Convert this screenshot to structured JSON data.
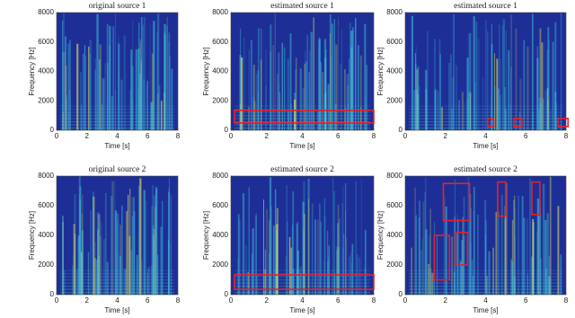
{
  "chart_data": [
    {
      "type": "spectrogram",
      "title": "original source 1",
      "xlabel": "Time [s]",
      "ylabel": "Frequency [Hz]",
      "xlim": [
        0,
        8
      ],
      "ylim": [
        0,
        8000
      ],
      "xticks": [
        0,
        2,
        4,
        6,
        8
      ],
      "yticks": [
        0,
        2000,
        4000,
        6000,
        8000
      ],
      "highlight_color": "#e8202a",
      "highlights": []
    },
    {
      "type": "spectrogram",
      "title": "estimated source 1",
      "xlabel": "Time [s]",
      "ylabel": "Frequency [Hz]",
      "xlim": [
        0,
        8
      ],
      "ylim": [
        0,
        8000
      ],
      "xticks": [
        0,
        2,
        4,
        6,
        8
      ],
      "yticks": [
        0,
        2000,
        4000,
        6000,
        8000
      ],
      "highlight_color": "#e8202a",
      "highlights": [
        {
          "x": [
            0.2,
            8
          ],
          "y": [
            500,
            1350
          ]
        }
      ]
    },
    {
      "type": "spectrogram",
      "title": "estimated source 1",
      "xlabel": "Time [s]",
      "ylabel": "Frequency [Hz]",
      "xlim": [
        0,
        8
      ],
      "ylim": [
        0,
        8000
      ],
      "xticks": [
        0,
        2,
        4,
        6,
        8
      ],
      "yticks": [
        0,
        2000,
        4000,
        6000,
        8000
      ],
      "highlight_color": "#e8202a",
      "highlights": [
        {
          "x": [
            4.1,
            4.4
          ],
          "y": [
            250,
            800
          ]
        },
        {
          "x": [
            5.4,
            5.8
          ],
          "y": [
            250,
            800
          ]
        },
        {
          "x": [
            7.6,
            8.1
          ],
          "y": [
            250,
            800
          ]
        }
      ]
    },
    {
      "type": "spectrogram",
      "title": "original source 2",
      "xlabel": "Time [s]",
      "ylabel": "Frequency [Hz]",
      "xlim": [
        0,
        8
      ],
      "ylim": [
        0,
        8000
      ],
      "xticks": [
        0,
        2,
        4,
        6,
        8
      ],
      "yticks": [
        0,
        2000,
        4000,
        6000,
        8000
      ],
      "highlight_color": "#e8202a",
      "highlights": []
    },
    {
      "type": "spectrogram",
      "title": "estimated source 2",
      "xlabel": "Time [s]",
      "ylabel": "Frequency [Hz]",
      "xlim": [
        0,
        8
      ],
      "ylim": [
        0,
        8000
      ],
      "xticks": [
        0,
        2,
        4,
        6,
        8
      ],
      "yticks": [
        0,
        2000,
        4000,
        6000,
        8000
      ],
      "highlight_color": "#e8202a",
      "highlights": [
        {
          "x": [
            0.2,
            8
          ],
          "y": [
            360,
            1330
          ]
        }
      ]
    },
    {
      "type": "spectrogram",
      "title": "estimated source 2",
      "xlabel": "Time [s]",
      "ylabel": "Frequency [Hz]",
      "xlim": [
        0,
        8
      ],
      "ylim": [
        0,
        8000
      ],
      "xticks": [
        0,
        2,
        4,
        6,
        8
      ],
      "yticks": [
        0,
        2000,
        4000,
        6000,
        8000
      ],
      "highlight_color": "#e8202a",
      "highlights": [
        {
          "x": [
            1.45,
            2.2
          ],
          "y": [
            1000,
            4000
          ]
        },
        {
          "x": [
            1.9,
            3.2
          ],
          "y": [
            5000,
            7500
          ]
        },
        {
          "x": [
            2.5,
            3.1
          ],
          "y": [
            2000,
            4200
          ]
        },
        {
          "x": [
            4.6,
            5.0
          ],
          "y": [
            5300,
            7600
          ]
        },
        {
          "x": [
            6.3,
            6.7
          ],
          "y": [
            5400,
            7600
          ]
        }
      ]
    }
  ]
}
